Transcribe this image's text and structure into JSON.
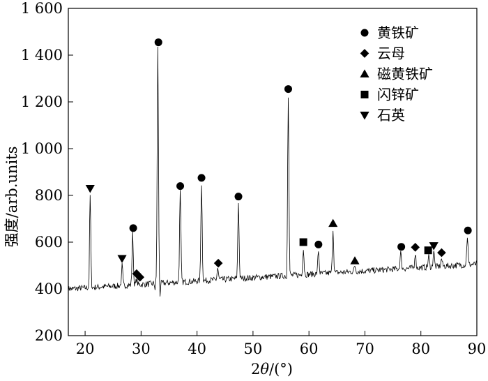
{
  "chart_data": {
    "type": "line",
    "title": "",
    "xlabel": "2θ/(°)",
    "ylabel": "强度/arb.units",
    "xlim": [
      17,
      90
    ],
    "ylim": [
      200,
      1600
    ],
    "xticks": [
      20,
      30,
      40,
      50,
      60,
      70,
      80,
      90
    ],
    "yticks": [
      200,
      400,
      600,
      800,
      1000,
      1200,
      1400,
      1600
    ],
    "ytick_labels": [
      "200",
      "400",
      "600",
      "800",
      "1 000",
      "1 200",
      "1 400",
      "1 600"
    ],
    "legend_position": "top-right",
    "legend": [
      {
        "marker": "circle",
        "label": "黄铁矿"
      },
      {
        "marker": "diamond",
        "label": "云母"
      },
      {
        "marker": "triangle-up",
        "label": "磁黄铁矿"
      },
      {
        "marker": "square",
        "label": "闪锌矿"
      },
      {
        "marker": "triangle-down",
        "label": "石英"
      }
    ],
    "peaks": [
      {
        "x": 20.9,
        "y": 800,
        "marker": "triangle-down"
      },
      {
        "x": 26.6,
        "y": 505,
        "marker": "triangle-down"
      },
      {
        "x": 28.5,
        "y": 635,
        "marker": "circle"
      },
      {
        "x": 29.2,
        "y": 440,
        "marker": "diamond"
      },
      {
        "x": 33.0,
        "y": 1430,
        "marker": "circle"
      },
      {
        "x": 37.0,
        "y": 815,
        "marker": "circle"
      },
      {
        "x": 40.8,
        "y": 850,
        "marker": "circle"
      },
      {
        "x": 43.7,
        "y": 490,
        "marker": "diamond"
      },
      {
        "x": 47.4,
        "y": 770,
        "marker": "circle"
      },
      {
        "x": 56.3,
        "y": 1230,
        "marker": "circle"
      },
      {
        "x": 59.0,
        "y": 570,
        "marker": "square"
      },
      {
        "x": 61.7,
        "y": 565,
        "marker": "circle"
      },
      {
        "x": 64.3,
        "y": 655,
        "marker": "triangle-up"
      },
      {
        "x": 68.2,
        "y": 500,
        "marker": "triangle-up"
      },
      {
        "x": 76.4,
        "y": 555,
        "marker": "circle"
      },
      {
        "x": 79.0,
        "y": 555,
        "marker": "diamond"
      },
      {
        "x": 81.4,
        "y": 540,
        "marker": "square"
      },
      {
        "x": 82.3,
        "y": 565,
        "marker": "triangle-down"
      },
      {
        "x": 83.7,
        "y": 530,
        "marker": "diamond"
      },
      {
        "x": 88.3,
        "y": 625,
        "marker": "circle"
      }
    ],
    "markers": [
      {
        "x": 20.9,
        "y": 830,
        "marker": "triangle-down"
      },
      {
        "x": 26.6,
        "y": 530,
        "marker": "triangle-down"
      },
      {
        "x": 28.6,
        "y": 660,
        "marker": "circle"
      },
      {
        "x": 29.2,
        "y": 465,
        "marker": "diamond"
      },
      {
        "x": 29.8,
        "y": 450,
        "marker": "diamond"
      },
      {
        "x": 33.1,
        "y": 1455,
        "marker": "circle"
      },
      {
        "x": 37.0,
        "y": 840,
        "marker": "circle"
      },
      {
        "x": 40.8,
        "y": 875,
        "marker": "circle"
      },
      {
        "x": 43.8,
        "y": 510,
        "marker": "diamond"
      },
      {
        "x": 47.4,
        "y": 795,
        "marker": "circle"
      },
      {
        "x": 56.3,
        "y": 1255,
        "marker": "circle"
      },
      {
        "x": 59.0,
        "y": 600,
        "marker": "square"
      },
      {
        "x": 61.7,
        "y": 590,
        "marker": "circle"
      },
      {
        "x": 64.3,
        "y": 680,
        "marker": "triangle-up"
      },
      {
        "x": 68.2,
        "y": 520,
        "marker": "triangle-up"
      },
      {
        "x": 76.5,
        "y": 580,
        "marker": "circle"
      },
      {
        "x": 79.0,
        "y": 578,
        "marker": "diamond"
      },
      {
        "x": 81.3,
        "y": 565,
        "marker": "square"
      },
      {
        "x": 82.3,
        "y": 585,
        "marker": "triangle-down"
      },
      {
        "x": 83.7,
        "y": 555,
        "marker": "diamond"
      },
      {
        "x": 88.4,
        "y": 650,
        "marker": "circle"
      }
    ]
  }
}
